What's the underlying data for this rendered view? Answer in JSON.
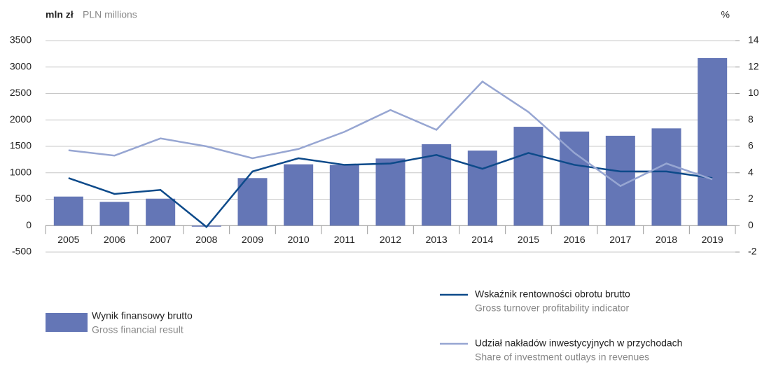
{
  "chart_data": {
    "type": "bar",
    "y_label": "mln zł",
    "y_label_en": "PLN millions",
    "y2_label": "%",
    "categories": [
      "2005",
      "2006",
      "2007",
      "2008",
      "2009",
      "2010",
      "2011",
      "2012",
      "2013",
      "2014",
      "2015",
      "2016",
      "2017",
      "2018",
      "2019"
    ],
    "series": [
      {
        "name": "Wynik finansowy brutto",
        "subtitle": "Gross financial result",
        "type": "bar",
        "color": "#6476b6",
        "values": [
          550,
          450,
          510,
          -20,
          900,
          1160,
          1150,
          1270,
          1540,
          1420,
          1870,
          1780,
          1700,
          1840,
          3170
        ]
      },
      {
        "name": "Wskaźnik rentowności obrotu brutto",
        "subtitle": "Gross turnover profitability indicator",
        "type": "line",
        "axis": "y2",
        "color": "#0d4a8a",
        "values": [
          3.6,
          2.4,
          2.7,
          -0.1,
          4.1,
          5.1,
          4.6,
          4.7,
          5.35,
          4.3,
          5.5,
          4.6,
          4.1,
          4.1,
          3.6
        ]
      },
      {
        "name": "Udział nakładów inwestycyjnych w przychodach",
        "subtitle": "Share of investment outlays in revenues",
        "type": "line",
        "axis": "y2",
        "color": "#97a6d2",
        "values": [
          5.7,
          5.3,
          6.6,
          6.0,
          5.1,
          5.8,
          7.1,
          8.75,
          7.25,
          10.9,
          8.6,
          5.5,
          3.0,
          4.7,
          3.5
        ]
      }
    ],
    "ylim": [
      -500,
      3500
    ],
    "yticks": [
      -500,
      0,
      500,
      1000,
      1500,
      2000,
      2500,
      3000,
      3500
    ],
    "y2lim": [
      -2,
      14
    ],
    "y2ticks": [
      -2,
      0,
      2,
      4,
      6,
      8,
      10,
      12,
      14
    ],
    "grid": true
  }
}
